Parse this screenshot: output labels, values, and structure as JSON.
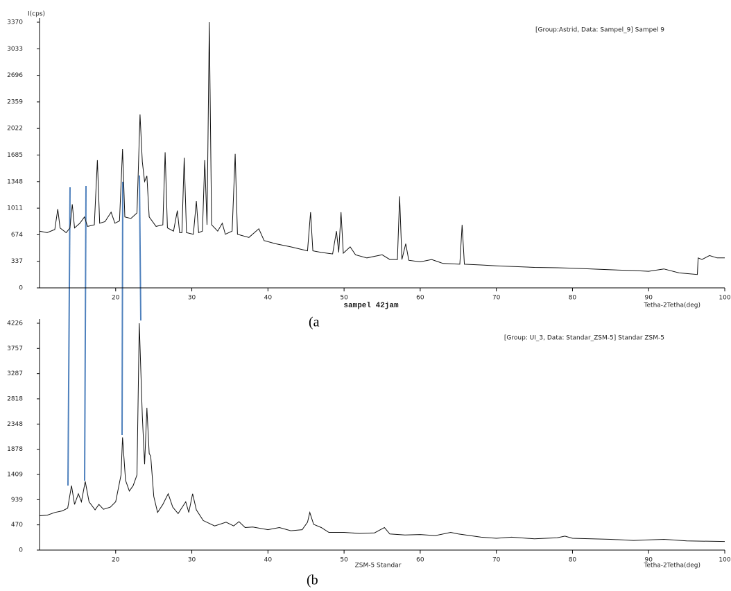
{
  "chart_data": [
    {
      "type": "line",
      "panel_label": "(a",
      "ylabel": "I(cps)",
      "annotation": "[Group:Astrid, Data: Sampel_9]  Sampel 9",
      "caption": "sampel 42jam",
      "xlabel": "Tetha-2Tetha(deg)",
      "xlim": [
        10,
        100
      ],
      "xticks": [
        20,
        30,
        40,
        50,
        60,
        70,
        80,
        90,
        100
      ],
      "ylim": [
        0,
        3370
      ],
      "yticks": [
        0,
        337,
        674,
        1011,
        1348,
        1685,
        2022,
        2359,
        2696,
        3033,
        3370
      ],
      "color": "#111111",
      "x": [
        10,
        11,
        12,
        12.4,
        12.7,
        13.5,
        14.0,
        14.3,
        14.6,
        15.3,
        15.9,
        16.3,
        17.2,
        17.6,
        17.9,
        18.6,
        19.4,
        19.9,
        20.5,
        20.9,
        21.2,
        22.0,
        22.8,
        23.2,
        23.5,
        23.8,
        24.1,
        24.4,
        25.3,
        26.2,
        26.5,
        26.8,
        27.6,
        28.1,
        28.4,
        28.7,
        29.0,
        29.3,
        30.2,
        30.6,
        30.9,
        31.4,
        31.7,
        32.0,
        32.3,
        32.6,
        33.4,
        34.0,
        34.4,
        35.3,
        35.7,
        36.0,
        37.5,
        38.8,
        39.5,
        41,
        43,
        45.2,
        45.6,
        45.9,
        47,
        48.5,
        49.0,
        49.3,
        49.6,
        49.9,
        50.8,
        51.5,
        53,
        55,
        56,
        57.0,
        57.3,
        57.6,
        58.1,
        58.5,
        60,
        61.5,
        63,
        65.2,
        65.5,
        65.8,
        68,
        70,
        75,
        78,
        80,
        85,
        88,
        90,
        92,
        94,
        96.4,
        96.5,
        97,
        98,
        99,
        100
      ],
      "values": [
        720,
        700,
        740,
        1000,
        760,
        700,
        760,
        1060,
        760,
        820,
        900,
        780,
        800,
        1620,
        820,
        840,
        960,
        820,
        850,
        1760,
        900,
        880,
        950,
        2200,
        1600,
        1350,
        1420,
        900,
        780,
        800,
        1720,
        760,
        720,
        980,
        700,
        700,
        1650,
        700,
        680,
        1100,
        700,
        720,
        1620,
        800,
        3370,
        800,
        720,
        820,
        680,
        720,
        1700,
        680,
        640,
        750,
        600,
        560,
        520,
        470,
        960,
        470,
        450,
        430,
        720,
        450,
        960,
        440,
        520,
        420,
        380,
        420,
        360,
        360,
        1160,
        360,
        560,
        350,
        330,
        360,
        310,
        300,
        800,
        300,
        290,
        280,
        260,
        255,
        250,
        230,
        220,
        210,
        240,
        190,
        170,
        380,
        360,
        410,
        380,
        380
      ]
    },
    {
      "type": "line",
      "panel_label": "(b",
      "annotation": "[Group: UI_3, Data: Standar_ZSM-5]  Standar ZSM-5",
      "caption": "ZSM-5 Standar",
      "xlabel": "Tetha-2Tetha(deg)",
      "xlim": [
        10,
        100
      ],
      "xticks": [
        20,
        30,
        40,
        50,
        60,
        70,
        80,
        90,
        100
      ],
      "ylim": [
        0,
        4226
      ],
      "yticks": [
        0,
        470,
        939,
        1409,
        1878,
        2348,
        2818,
        3287,
        3757,
        4226
      ],
      "color": "#111111",
      "x": [
        10,
        11,
        12,
        13,
        13.7,
        14.2,
        14.6,
        15.1,
        15.5,
        16.0,
        16.5,
        17.3,
        17.8,
        18.4,
        19.3,
        20.0,
        20.7,
        20.9,
        21.3,
        21.8,
        22.3,
        22.8,
        23.1,
        23.5,
        23.8,
        24.1,
        24.4,
        24.6,
        25.0,
        25.5,
        26.2,
        26.9,
        27.5,
        28.2,
        29.2,
        29.6,
        30.1,
        30.6,
        31.5,
        33,
        34.5,
        35.5,
        36.2,
        37,
        38,
        40,
        41.5,
        43,
        44.5,
        45.2,
        45.5,
        46,
        47,
        48,
        50,
        52,
        54,
        55.3,
        56,
        58,
        60,
        62,
        64,
        65,
        68,
        70,
        72,
        75,
        78,
        79,
        80,
        85,
        88,
        92,
        95,
        100
      ],
      "values": [
        640,
        650,
        700,
        730,
        780,
        1200,
        850,
        1050,
        900,
        1280,
        900,
        750,
        850,
        760,
        800,
        900,
        1400,
        2100,
        1300,
        1100,
        1200,
        1400,
        4226,
        2500,
        1600,
        2650,
        1800,
        1750,
        1000,
        700,
        850,
        1050,
        800,
        680,
        900,
        700,
        1050,
        750,
        550,
        450,
        520,
        450,
        530,
        420,
        430,
        380,
        420,
        360,
        380,
        520,
        700,
        480,
        420,
        330,
        330,
        310,
        320,
        420,
        300,
        280,
        290,
        270,
        330,
        300,
        240,
        220,
        240,
        210,
        230,
        260,
        220,
        200,
        180,
        200,
        170,
        160
      ]
    }
  ]
}
